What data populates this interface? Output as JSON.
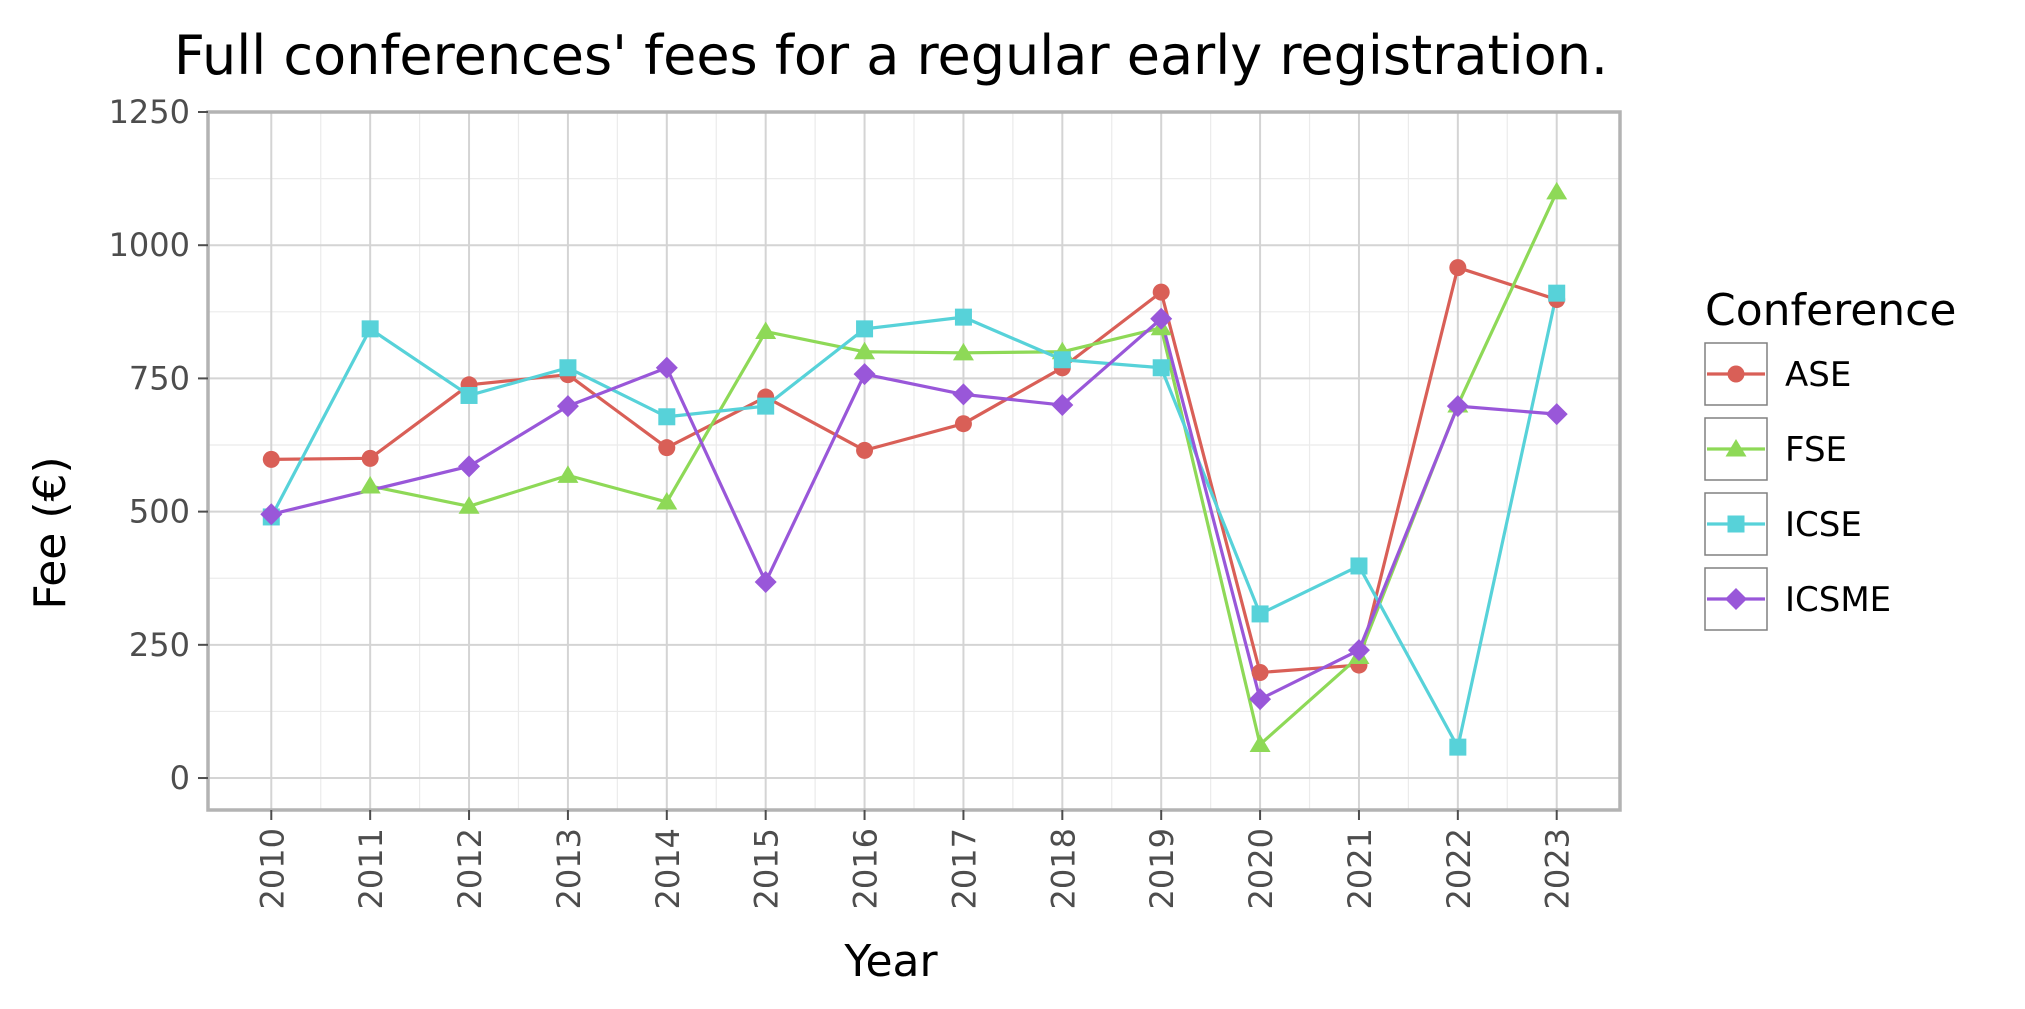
{
  "chart_data": {
    "type": "line",
    "title": "Full conferences' fees for a regular early registration.",
    "xlabel": "Year",
    "ylabel": "Fee (€)",
    "x": [
      2010,
      2011,
      2012,
      2013,
      2014,
      2015,
      2016,
      2017,
      2018,
      2019,
      2020,
      2021,
      2022,
      2023
    ],
    "x_tick_labels": [
      "2010",
      "2011",
      "2012",
      "2013",
      "2014",
      "2015",
      "2016",
      "2017",
      "2018",
      "2019",
      "2020",
      "2021",
      "2022",
      "2023"
    ],
    "ylim": [
      -60,
      1250
    ],
    "y_ticks": [
      0,
      250,
      500,
      750,
      1000,
      1250
    ],
    "y_tick_labels": [
      "0",
      "250",
      "500",
      "750",
      "1000",
      "1250"
    ],
    "grid": true,
    "legend_position": "right",
    "legend_title": "Conference",
    "series": [
      {
        "name": "ASE",
        "color": "#d95f57",
        "marker": "circle",
        "values": [
          598,
          600,
          738,
          757,
          620,
          715,
          615,
          665,
          770,
          912,
          198,
          212,
          958,
          898
        ]
      },
      {
        "name": "FSE",
        "color": "#8ed957",
        "marker": "triangle",
        "values": [
          null,
          548,
          510,
          568,
          518,
          838,
          800,
          798,
          800,
          845,
          63,
          228,
          700,
          1100
        ]
      },
      {
        "name": "ICSE",
        "color": "#57d2d9",
        "marker": "square",
        "values": [
          490,
          843,
          718,
          770,
          678,
          698,
          843,
          865,
          785,
          770,
          308,
          398,
          58,
          910
        ]
      },
      {
        "name": "ICSME",
        "color": "#9957d9",
        "marker": "diamond",
        "values": [
          495,
          null,
          585,
          698,
          770,
          368,
          758,
          720,
          700,
          862,
          148,
          240,
          698,
          683
        ]
      }
    ]
  }
}
